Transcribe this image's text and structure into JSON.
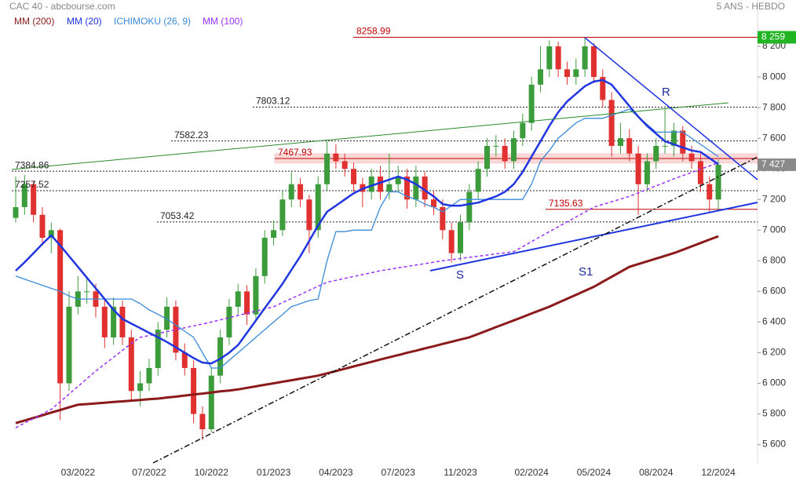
{
  "chart_data": {
    "type": "candlestick",
    "title": "CAC 40 - abcbourse.com",
    "subtitle": "5 ANS - HEBDO",
    "up_color": "#3c9c3c",
    "down_color": "#e0302f",
    "categories": [
      null,
      null,
      null,
      null,
      null,
      null,
      null,
      "03/2022",
      null,
      null,
      null,
      null,
      null,
      null,
      null,
      "07/2022",
      null,
      null,
      null,
      null,
      null,
      null,
      "10/2022",
      null,
      null,
      null,
      null,
      null,
      null,
      "01/2023",
      null,
      null,
      null,
      null,
      null,
      null,
      "04/2023",
      null,
      null,
      null,
      null,
      null,
      null,
      "07/2023",
      null,
      null,
      null,
      null,
      null,
      null,
      "11/2023",
      null,
      null,
      null,
      null,
      null,
      null,
      null,
      "02/2024",
      null,
      null,
      null,
      null,
      null,
      null,
      "05/2024",
      null,
      null,
      null,
      null,
      null,
      null,
      "08/2024",
      null,
      null,
      null,
      null,
      null,
      null,
      "12/2024"
    ],
    "ohlc": [
      [
        7080,
        7350,
        7050,
        7150
      ],
      [
        7150,
        7360,
        7100,
        7300
      ],
      [
        7300,
        7320,
        7050,
        7100
      ],
      [
        7100,
        7150,
        6900,
        6950
      ],
      [
        6950,
        7050,
        6850,
        7000
      ],
      [
        7000,
        7010,
        5760,
        6000
      ],
      [
        6000,
        6600,
        5950,
        6500
      ],
      [
        6500,
        6700,
        6450,
        6600
      ],
      [
        6600,
        6680,
        6520,
        6600
      ],
      [
        6600,
        6650,
        6430,
        6500
      ],
      [
        6500,
        6550,
        6230,
        6300
      ],
      [
        6300,
        6560,
        6250,
        6500
      ],
      [
        6500,
        6540,
        6250,
        6300
      ],
      [
        6300,
        6350,
        5880,
        5950
      ],
      [
        5950,
        6080,
        5850,
        6000
      ],
      [
        6000,
        6160,
        5950,
        6100
      ],
      [
        6100,
        6400,
        6050,
        6350
      ],
      [
        6350,
        6560,
        6300,
        6500
      ],
      [
        6500,
        6540,
        6150,
        6200
      ],
      [
        6200,
        6260,
        6050,
        6100
      ],
      [
        6100,
        6150,
        5740,
        5800
      ],
      [
        5800,
        5850,
        5630,
        5700
      ],
      [
        5700,
        6100,
        5680,
        6050
      ],
      [
        6050,
        6350,
        6000,
        6300
      ],
      [
        6300,
        6550,
        6250,
        6500
      ],
      [
        6500,
        6650,
        6450,
        6600
      ],
      [
        6600,
        6640,
        6380,
        6450
      ],
      [
        6450,
        6750,
        6400,
        6700
      ],
      [
        6700,
        7000,
        6650,
        6950
      ],
      [
        6950,
        7060,
        6900,
        7000
      ],
      [
        7000,
        7260,
        6960,
        7200
      ],
      [
        7200,
        7380,
        7150,
        7300
      ],
      [
        7300,
        7340,
        7150,
        7200
      ],
      [
        7200,
        7230,
        6850,
        7000
      ],
      [
        7000,
        7350,
        6950,
        7300
      ],
      [
        7300,
        7580,
        7260,
        7500
      ],
      [
        7500,
        7560,
        7400,
        7450
      ],
      [
        7450,
        7500,
        7350,
        7400
      ],
      [
        7400,
        7440,
        7250,
        7300
      ],
      [
        7300,
        7340,
        7150,
        7250
      ],
      [
        7250,
        7400,
        7200,
        7350
      ],
      [
        7350,
        7420,
        7200,
        7250
      ],
      [
        7250,
        7500,
        7200,
        7300
      ],
      [
        7300,
        7420,
        7250,
        7350
      ],
      [
        7350,
        7400,
        7140,
        7200
      ],
      [
        7200,
        7420,
        7150,
        7350
      ],
      [
        7350,
        7380,
        7150,
        7200
      ],
      [
        7200,
        7260,
        7100,
        7150
      ],
      [
        7150,
        7200,
        6940,
        7000
      ],
      [
        7000,
        7050,
        6790,
        6850
      ],
      [
        6850,
        7100,
        6800,
        7050
      ],
      [
        7050,
        7300,
        7000,
        7250
      ],
      [
        7250,
        7450,
        7200,
        7400
      ],
      [
        7400,
        7600,
        7350,
        7550
      ],
      [
        7550,
        7620,
        7480,
        7550
      ],
      [
        7550,
        7600,
        7400,
        7450
      ],
      [
        7450,
        7650,
        7400,
        7600
      ],
      [
        7600,
        7760,
        7550,
        7700
      ],
      [
        7700,
        8000,
        7650,
        7950
      ],
      [
        7950,
        8200,
        7900,
        8050
      ],
      [
        8050,
        8240,
        8000,
        8200
      ],
      [
        8200,
        8230,
        8000,
        8050
      ],
      [
        8050,
        8100,
        7950,
        8000
      ],
      [
        8000,
        8120,
        7950,
        8050
      ],
      [
        8050,
        8259,
        8000,
        8200
      ],
      [
        8200,
        8220,
        7960,
        8000
      ],
      [
        8000,
        8050,
        7800,
        7850
      ],
      [
        7850,
        7900,
        7480,
        7550
      ],
      [
        7550,
        7700,
        7500,
        7600
      ],
      [
        7600,
        7660,
        7450,
        7500
      ],
      [
        7500,
        7550,
        7100,
        7300
      ],
      [
        7300,
        7500,
        7250,
        7450
      ],
      [
        7450,
        7600,
        7400,
        7550
      ],
      [
        7550,
        7790,
        7500,
        7550
      ],
      [
        7550,
        7700,
        7480,
        7650
      ],
      [
        7650,
        7680,
        7450,
        7500
      ],
      [
        7500,
        7550,
        7400,
        7450
      ],
      [
        7450,
        7500,
        7250,
        7300
      ],
      [
        7300,
        7350,
        7120,
        7200
      ],
      [
        7200,
        7460,
        7130,
        7427
      ]
    ],
    "series": [
      {
        "name": "MM (200)",
        "color": "#8b1a1a",
        "values": [
          5740,
          5757,
          5774,
          5791,
          5809,
          5826,
          5843,
          5860,
          5864,
          5869,
          5873,
          5878,
          5882,
          5887,
          5891,
          5896,
          5900,
          5907,
          5913,
          5920,
          5927,
          5933,
          5940,
          5947,
          5953,
          5960,
          5970,
          5980,
          5990,
          6000,
          6010,
          6020,
          6030,
          6040,
          6050,
          6065,
          6080,
          6095,
          6110,
          6125,
          6140,
          6155,
          6170,
          6184,
          6199,
          6213,
          6228,
          6242,
          6257,
          6271,
          6286,
          6300,
          6322,
          6344,
          6367,
          6389,
          6411,
          6433,
          6456,
          6478,
          6500,
          6526,
          6552,
          6578,
          6604,
          6630,
          6663,
          6695,
          6728,
          6760,
          6778,
          6796,
          6814,
          6832,
          6850,
          6872,
          6894,
          6916,
          6938,
          6960
        ]
      },
      {
        "name": "MM (20)",
        "color": "#1f35e0",
        "values": [
          6735,
          6790,
          6850,
          6910,
          6966,
          6900,
          6830,
          6760,
          6690,
          6620,
          6550,
          6480,
          6420,
          6390,
          6360,
          6330,
          6300,
          6270,
          6235,
          6200,
          6165,
          6135,
          6130,
          6160,
          6200,
          6250,
          6330,
          6410,
          6490,
          6570,
          6650,
          6740,
          6830,
          6930,
          7030,
          7120,
          7160,
          7200,
          7240,
          7270,
          7290,
          7310,
          7330,
          7350,
          7330,
          7300,
          7260,
          7220,
          7170,
          7160,
          7160,
          7170,
          7180,
          7200,
          7220,
          7250,
          7300,
          7380,
          7480,
          7580,
          7680,
          7770,
          7840,
          7890,
          7940,
          7970,
          7980,
          7950,
          7880,
          7810,
          7740,
          7680,
          7630,
          7580,
          7560,
          7540,
          7520,
          7510,
          7470,
          7430
        ]
      },
      {
        "name": "ICHIMOKU (26, 9)",
        "color": "#3a8ad8",
        "values": [
          6700,
          6680,
          6660,
          6640,
          6620,
          6600,
          6570,
          6550,
          6550,
          6550,
          6550,
          6550,
          6550,
          6550,
          6520,
          6480,
          6450,
          6420,
          6380,
          6340,
          6300,
          6200,
          6100,
          6100,
          6150,
          6200,
          6250,
          6300,
          6350,
          6400,
          6450,
          6500,
          6520,
          6540,
          6550,
          6800,
          6990,
          6990,
          7000,
          7000,
          7000,
          7150,
          7250,
          7250,
          7220,
          7200,
          7170,
          7150,
          7120,
          7160,
          7200,
          7200,
          7200,
          7200,
          7200,
          7200,
          7200,
          7200,
          7300,
          7450,
          7520,
          7600,
          7650,
          7700,
          7730,
          7730,
          7730,
          7750,
          7770,
          7790,
          7740,
          7690,
          7640,
          7640,
          7640,
          7640,
          7600,
          7560,
          7520,
          7480
        ]
      },
      {
        "name": "MM (100)",
        "color": "#9b30ff",
        "dash": true,
        "values": [
          5710,
          5740,
          5770,
          5800,
          5830,
          5880,
          5930,
          5980,
          6030,
          6080,
          6125,
          6170,
          6215,
          6260,
          6300,
          6312,
          6325,
          6337,
          6350,
          6362,
          6375,
          6387,
          6400,
          6414,
          6428,
          6443,
          6457,
          6471,
          6486,
          6500,
          6527,
          6553,
          6580,
          6607,
          6633,
          6660,
          6672,
          6685,
          6697,
          6710,
          6722,
          6735,
          6744,
          6754,
          6763,
          6772,
          6781,
          6791,
          6800,
          6807,
          6815,
          6822,
          6830,
          6837,
          6845,
          6852,
          6860,
          6892,
          6925,
          6958,
          6990,
          7022,
          7054,
          7086,
          7118,
          7150,
          7168,
          7185,
          7203,
          7220,
          7243,
          7266,
          7289,
          7312,
          7335,
          7356,
          7377,
          7398,
          7419,
          7440
        ]
      }
    ],
    "levels": [
      {
        "value": 8258.99,
        "color": "#c00000",
        "style": "solid"
      },
      {
        "value": 7803.12,
        "color": "#222222",
        "style": "dotted"
      },
      {
        "value": 7582.23,
        "color": "#222222",
        "style": "dotted"
      },
      {
        "value": 7467.93,
        "color": "#c00000",
        "style": "band"
      },
      {
        "value": 7384.86,
        "color": "#222222",
        "style": "dotted"
      },
      {
        "value": 7257.52,
        "color": "#222222",
        "style": "dotted"
      },
      {
        "value": 7053.42,
        "color": "#222222",
        "style": "dotted"
      },
      {
        "value": 7135.63,
        "color": "#c00000",
        "style": "solid"
      }
    ],
    "price_tags": [
      {
        "value": 8259,
        "label": "8 259",
        "color": "#22b422"
      },
      {
        "value": 7427,
        "label": "7 427",
        "color": "#8a8a8a"
      }
    ],
    "annotations": [
      "R",
      "S",
      "S1"
    ],
    "ylim": [
      5480,
      8400
    ],
    "yticks": [
      {
        "value": 5600,
        "label": "5 600"
      },
      {
        "value": 5800,
        "label": "5 800"
      },
      {
        "value": 6000,
        "label": "6 000"
      },
      {
        "value": 6200,
        "label": "6 200"
      },
      {
        "value": 6400,
        "label": "6 400"
      },
      {
        "value": 6600,
        "label": "6 600"
      },
      {
        "value": 6800,
        "label": "6 800"
      },
      {
        "value": 7000,
        "label": "7 000"
      },
      {
        "value": 7200,
        "label": "7 200"
      },
      {
        "value": 7400,
        "label": "7 400"
      },
      {
        "value": 7600,
        "label": "7 600"
      },
      {
        "value": 7800,
        "label": "7 800"
      },
      {
        "value": 8000,
        "label": "8 000"
      },
      {
        "value": 8200,
        "label": "8 200"
      }
    ]
  }
}
